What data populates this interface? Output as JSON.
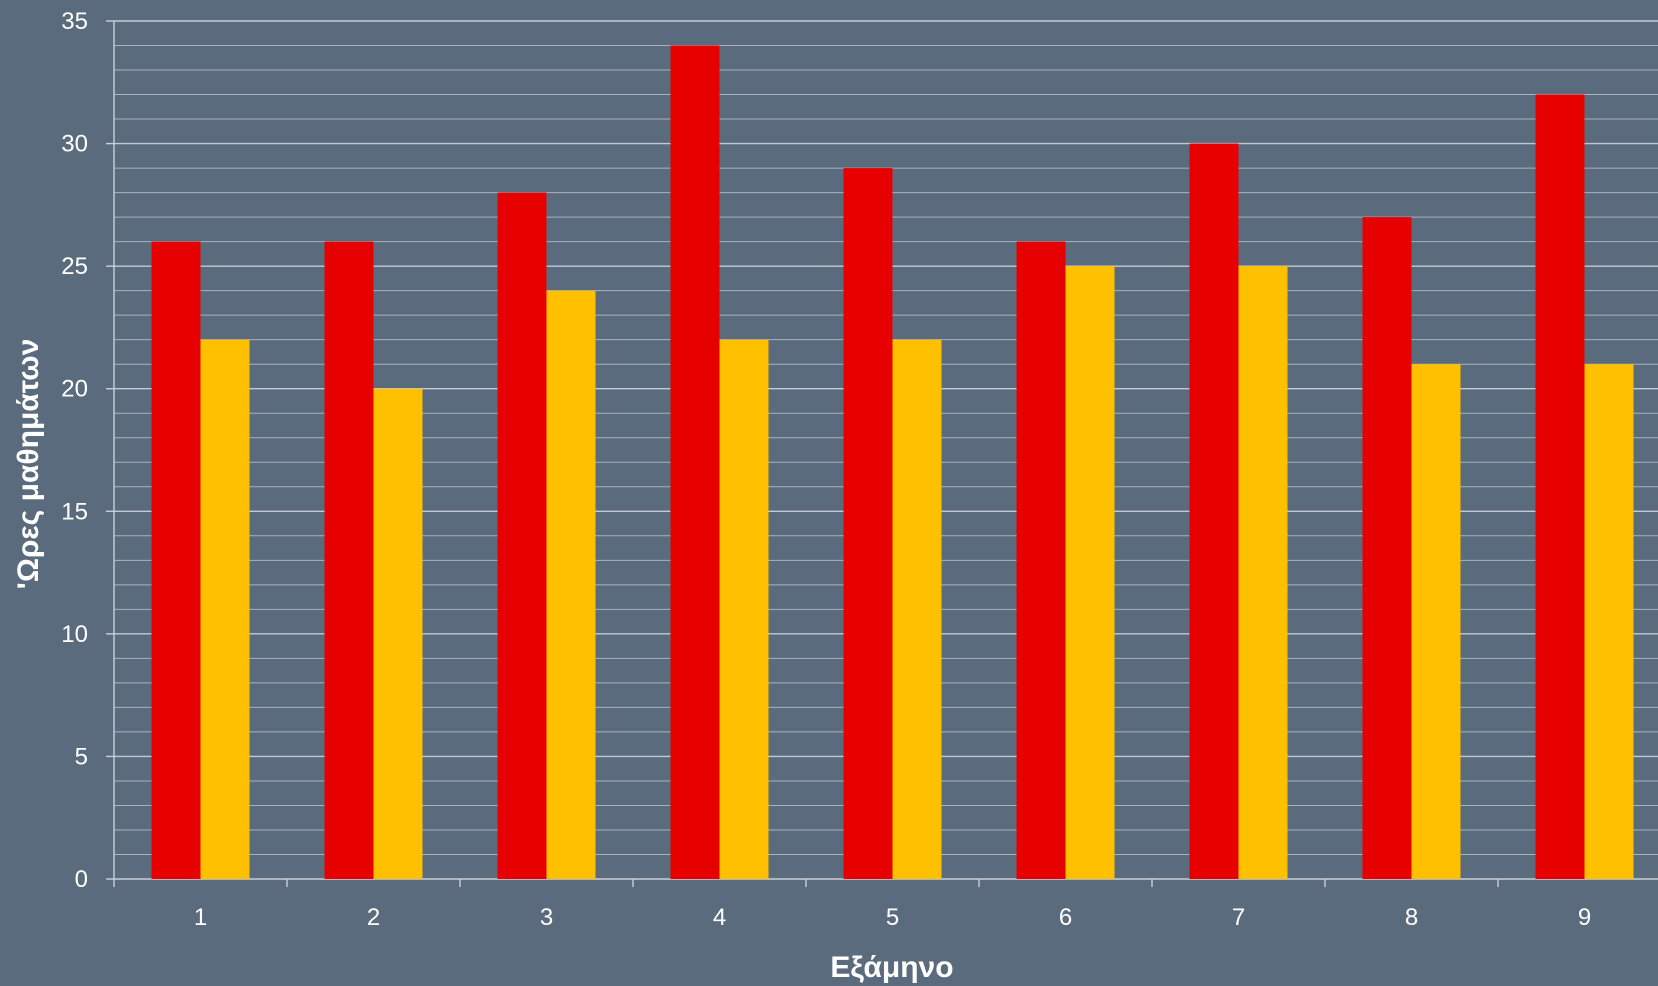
{
  "chart_data": {
    "type": "bar",
    "title": "",
    "xlabel": "Εξάμηνο",
    "ylabel": "'Ωρες μαθημάτων",
    "categories": [
      "1",
      "2",
      "3",
      "4",
      "5",
      "6",
      "7",
      "8",
      "9"
    ],
    "series": [
      {
        "color": "#e60000",
        "values": [
          26,
          26,
          28,
          34,
          29,
          26,
          30,
          27,
          32
        ]
      },
      {
        "color": "#ffc000",
        "values": [
          22,
          20,
          24,
          22,
          22,
          25,
          25,
          21,
          21
        ]
      }
    ],
    "ylim": [
      0,
      35
    ],
    "yticks": [
      0,
      5,
      10,
      15,
      20,
      25,
      30,
      35
    ],
    "minor_grid_step": 1,
    "grid": true,
    "legend": "none",
    "colors": {
      "background": "#5b6b7e",
      "gridline": "#c9d0d8",
      "text": "#ffffff"
    }
  }
}
